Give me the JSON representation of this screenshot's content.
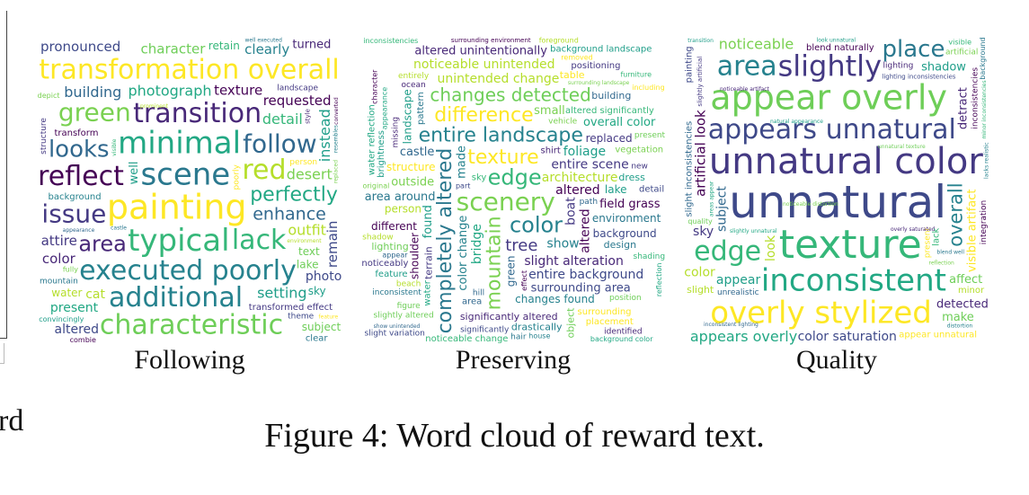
{
  "panels": [
    {
      "label": "Following",
      "words": [
        "requested",
        "convincingly",
        "attire",
        "transition",
        "retain",
        "scene",
        "remain",
        "text",
        "minimal",
        "enhance",
        "red",
        "depict",
        "executed poorly",
        "feature",
        "converted",
        "well",
        "transformed effect",
        "color",
        "typical",
        "clear",
        "theme",
        "character",
        "present",
        "looks",
        "cat",
        "replaced",
        "additional",
        "transformation overall",
        "texture",
        "instead",
        "structure",
        "area",
        "visible",
        "mountain",
        "pronounced",
        "characteristic",
        "photograph",
        "appearance",
        "environment",
        "fully",
        "clearly",
        "painting",
        "reflect",
        "setting",
        "landscape",
        "turned",
        "lack",
        "castle",
        "photo",
        "subject",
        "perfectly",
        "follow",
        "water",
        "green",
        "background",
        "person",
        "transform",
        "sky",
        "issue",
        "style",
        "detail",
        "well executed",
        "altered",
        "lake",
        "prominent",
        "building",
        "outfit",
        "desert",
        "resembles",
        "poorly",
        "combie"
      ]
    },
    {
      "label": "Preserving",
      "words": [
        "show unintended",
        "person",
        "outside",
        "color",
        "texture",
        "effect",
        "landscape",
        "new",
        "ocean",
        "inconsistencies",
        "design",
        "part",
        "slightly altered",
        "bridge",
        "appear",
        "architecture",
        "vehicle",
        "color change",
        "structure",
        "altered",
        "found",
        "tree",
        "slight alteration",
        "noticeable change",
        "pattern",
        "significantly",
        "lighting",
        "background color",
        "castle",
        "shadow",
        "surrounding landscape",
        "house",
        "table",
        "character",
        "foliage",
        "replaced",
        "altered unintentionally",
        "furniture",
        "inconsistent",
        "slight variation",
        "figure",
        "overall color",
        "hill",
        "entirely",
        "original",
        "show",
        "including",
        "shoulder",
        "brightness",
        "terrain",
        "significantly altered",
        "altered significantly",
        "environment",
        "entire background",
        "position",
        "water reflection",
        "area",
        "beach",
        "vegetation",
        "entire landscape",
        "surrounding",
        "field grass",
        "feature",
        "boat",
        "missing",
        "sky",
        "hair",
        "surrounding area",
        "present",
        "reflection",
        "green",
        "unintended change",
        "scenery",
        "changes found",
        "removed",
        "different",
        "lake",
        "entire scene",
        "identified",
        "edge",
        "completely altered",
        "background",
        "changes detected",
        "water",
        "building",
        "foreground",
        "mountain",
        "made",
        "difference",
        "altered",
        "dress",
        "positioning",
        "shirt",
        "shading",
        "area around",
        "detail",
        "object",
        "appearance",
        "path",
        "noticeable unintended",
        "small",
        "drastically",
        "placement",
        "surrounding environment",
        "background landscape",
        "noticeably"
      ]
    },
    {
      "label": "Quality",
      "words": [
        "lack",
        "noticeable artifact",
        "color saturation",
        "affect",
        "inconsistent",
        "subject",
        "slight",
        "reflection",
        "distortion",
        "appear unnatural",
        "integration",
        "shadow",
        "unnatural color",
        "detract",
        "texture",
        "place",
        "lighting inconsistencies",
        "quality",
        "slightly unnatural",
        "unrealistic",
        "look",
        "unnatural texture",
        "overall",
        "present",
        "inconsistencies",
        "appear",
        "slightly",
        "lighting",
        "edge",
        "overly saturated",
        "appears unnatural",
        "inconsistent lighting",
        "appears overly",
        "natural appearance",
        "minor",
        "noticeable",
        "lacks realistic",
        "visible artifact",
        "blend naturally",
        "transition",
        "slightly artificial",
        "noticeable distortion",
        "minor inconsistencies",
        "background",
        "unnatural",
        "appear overly",
        "areas appear",
        "slight inconsistencies",
        "color",
        "artificial",
        "area",
        "overly stylized",
        "artificial look",
        "look unnatural",
        "sky",
        "detected",
        "visible",
        "blend well",
        "painting",
        "make"
      ]
    }
  ],
  "caption": "Figure 4: Word cloud of reward text.",
  "partial_caption_left": "rd",
  "palette": [
    "#440154",
    "#482878",
    "#3e4989",
    "#31688e",
    "#26828e",
    "#1f9e89",
    "#35b779",
    "#6ece58",
    "#b5de2b",
    "#fde725",
    "#443983",
    "#2a788e",
    "#22a884",
    "#7ad151"
  ]
}
